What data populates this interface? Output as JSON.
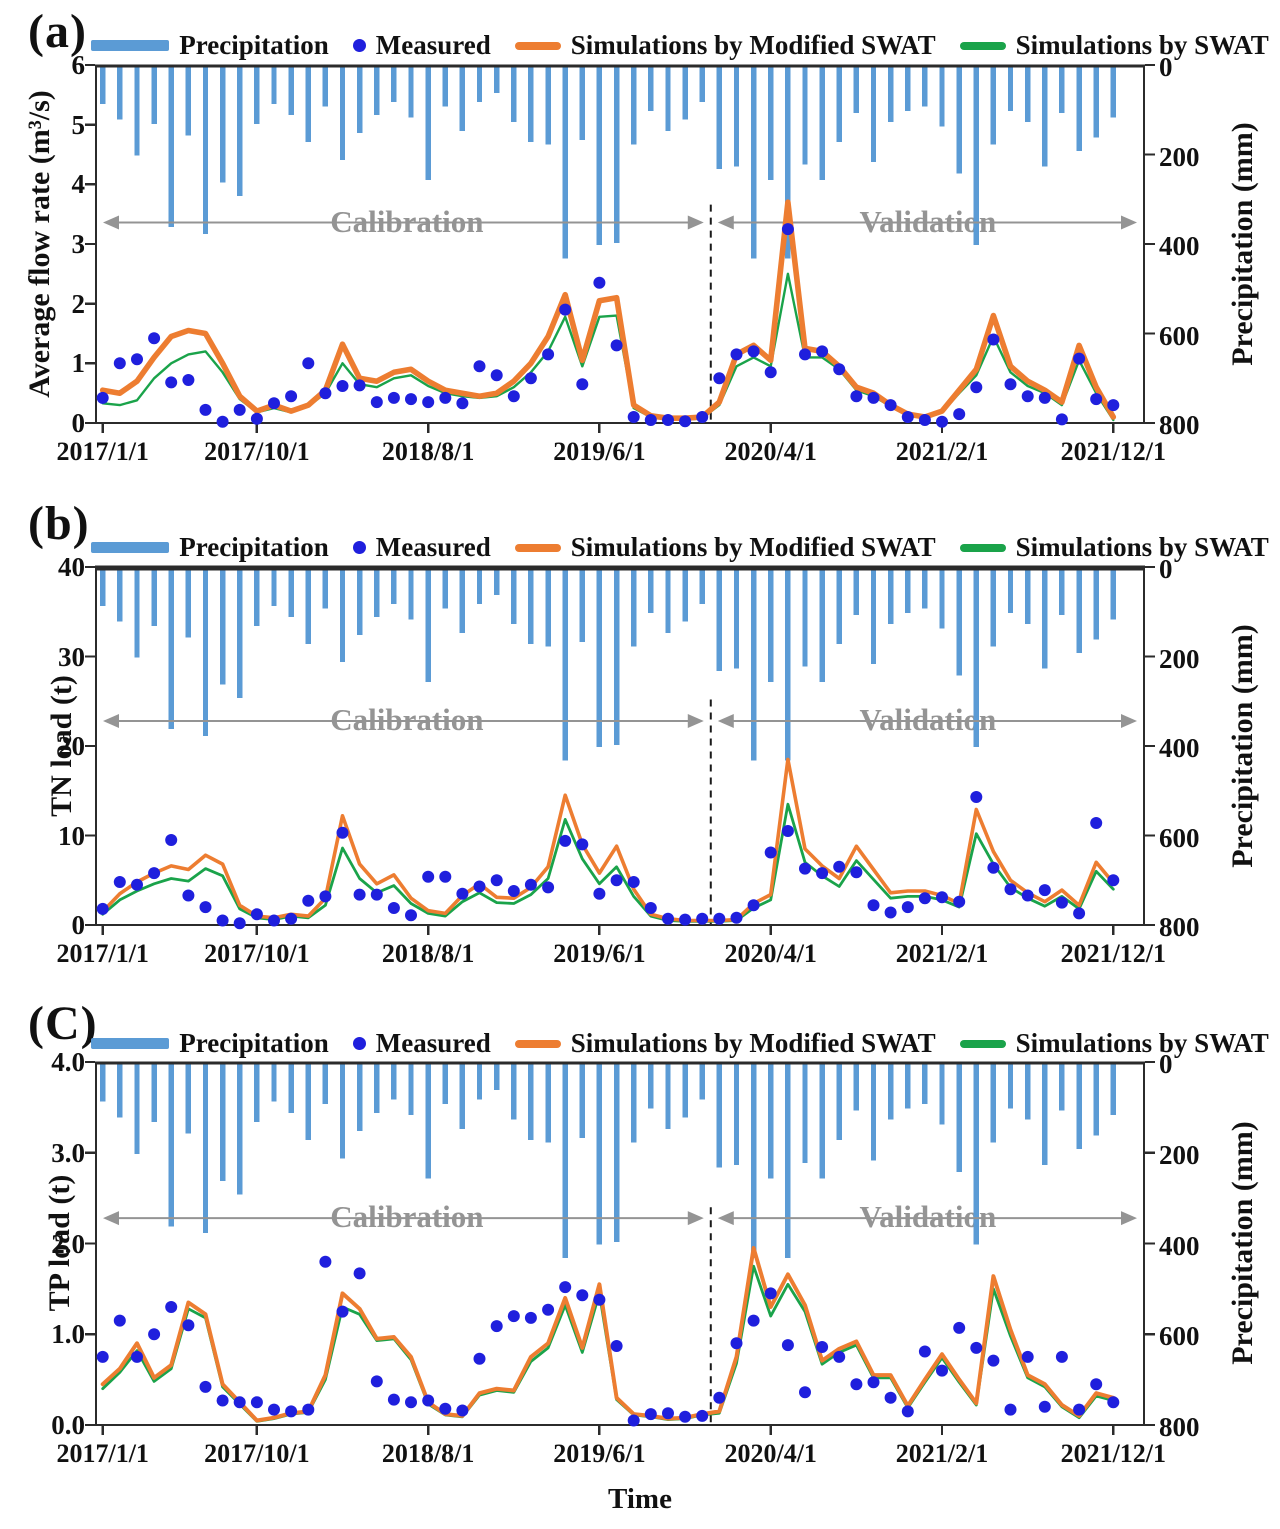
{
  "page": {
    "background": "#ffffff"
  },
  "colors": {
    "precipitation_bar": "#5B9BD5",
    "measured_dot": "#1F1FDD",
    "modified_swat_line": "#ED7D31",
    "swat_line": "#1AA34A",
    "region_gray": "#949494",
    "axis": "#2b2b2b",
    "text": "#111111"
  },
  "legend": {
    "precipitation": "Precipitation",
    "measured": "Measured",
    "modified": "Simulations by Modified SWAT",
    "swat": "Simulations by SWAT"
  },
  "regions": {
    "calibration": "Calibration",
    "validation": "Validation",
    "boundary_after_month_index": 35,
    "boundary_date": "2019/12"
  },
  "x_axis": {
    "title": "Time",
    "tick_labels": [
      "2017/1/1",
      "2017/10/1",
      "2018/8/1",
      "2019/6/1",
      "2020/4/1",
      "2021/2/1",
      "2021/12/1"
    ],
    "tick_months": [
      0,
      9,
      19,
      29,
      39,
      49,
      59
    ],
    "interval": "monthly",
    "start": "2017/1",
    "end": "2021/12",
    "n_points": 60
  },
  "right_axis": {
    "title": "Precipitation (mm)",
    "ticks": [
      0,
      200,
      400,
      600,
      800
    ],
    "max": 800,
    "inverted": true
  },
  "chart_data": [
    {
      "type": "bar+line+scatter",
      "panel": "(a)",
      "ylabel_left": "Average flow rate (m³/s)",
      "ylabel_right": "Precipitation (mm)",
      "ylim_left": [
        0,
        6
      ],
      "left_ticks": [
        6,
        5,
        4,
        3,
        2,
        1,
        0
      ],
      "left_tick_labels": [
        "6",
        "5",
        "4",
        "3",
        "2",
        "1",
        "0"
      ],
      "ylim_right_inverted": [
        0,
        800
      ],
      "x_tick_labels": [
        "2017/1/1",
        "2017/10/1",
        "2018/8/1",
        "2019/6/1",
        "2020/4/1",
        "2021/2/1",
        "2021/12/1"
      ],
      "annotations": [
        "Calibration",
        "Validation"
      ],
      "series": [
        {
          "name": "Precipitation",
          "type": "bar",
          "axis": "right",
          "values": [
            85,
            120,
            200,
            130,
            360,
            155,
            375,
            260,
            290,
            130,
            85,
            110,
            170,
            90,
            210,
            150,
            110,
            80,
            115,
            255,
            90,
            145,
            80,
            60,
            125,
            170,
            175,
            430,
            165,
            400,
            395,
            175,
            100,
            145,
            120,
            80,
            230,
            225,
            430,
            255,
            430,
            220,
            255,
            170,
            105,
            215,
            125,
            100,
            90,
            135,
            240,
            400,
            175,
            100,
            125,
            225,
            105,
            190,
            160,
            115
          ]
        },
        {
          "name": "Measured",
          "type": "scatter",
          "axis": "left",
          "values": [
            0.42,
            1.0,
            1.07,
            1.42,
            0.68,
            0.72,
            0.22,
            0.02,
            0.22,
            0.07,
            0.33,
            0.45,
            1.0,
            0.5,
            0.62,
            0.63,
            0.35,
            0.42,
            0.4,
            0.35,
            0.42,
            0.33,
            0.95,
            0.8,
            0.45,
            0.75,
            1.15,
            1.9,
            0.65,
            2.35,
            1.3,
            0.1,
            0.05,
            0.05,
            0.03,
            0.1,
            0.75,
            1.15,
            1.2,
            0.85,
            3.25,
            1.15,
            1.2,
            0.9,
            0.45,
            0.42,
            0.3,
            0.1,
            0.05,
            0.02,
            0.15,
            0.6,
            1.4,
            0.65,
            0.45,
            0.42,
            0.06,
            1.08,
            0.4,
            0.3
          ]
        },
        {
          "name": "Simulations by Modified SWAT",
          "type": "line",
          "axis": "left",
          "values": [
            0.55,
            0.5,
            0.7,
            1.1,
            1.45,
            1.55,
            1.5,
            1.0,
            0.45,
            0.2,
            0.3,
            0.2,
            0.3,
            0.55,
            1.32,
            0.75,
            0.7,
            0.85,
            0.9,
            0.7,
            0.55,
            0.5,
            0.45,
            0.5,
            0.7,
            1.0,
            1.45,
            2.15,
            1.05,
            2.05,
            2.1,
            0.3,
            0.12,
            0.08,
            0.08,
            0.1,
            0.35,
            1.15,
            1.3,
            1.05,
            3.7,
            1.25,
            1.2,
            0.95,
            0.6,
            0.5,
            0.3,
            0.15,
            0.1,
            0.2,
            0.55,
            0.9,
            1.8,
            0.95,
            0.7,
            0.55,
            0.35,
            1.3,
            0.6,
            0.1
          ]
        },
        {
          "name": "Simulations by SWAT",
          "type": "line",
          "axis": "left",
          "values": [
            0.33,
            0.3,
            0.38,
            0.75,
            1.0,
            1.15,
            1.2,
            0.85,
            0.4,
            0.18,
            0.25,
            0.18,
            0.28,
            0.5,
            1.0,
            0.65,
            0.6,
            0.75,
            0.8,
            0.62,
            0.5,
            0.45,
            0.42,
            0.45,
            0.6,
            0.85,
            1.2,
            1.78,
            0.95,
            1.78,
            1.8,
            0.25,
            0.1,
            0.06,
            0.05,
            0.08,
            0.3,
            0.95,
            1.1,
            0.95,
            2.5,
            1.1,
            1.1,
            0.9,
            0.55,
            0.45,
            0.28,
            0.13,
            0.08,
            0.18,
            0.5,
            0.8,
            1.45,
            0.85,
            0.62,
            0.5,
            0.3,
            1.05,
            0.5,
            0.05
          ]
        }
      ]
    },
    {
      "type": "bar+line+scatter",
      "panel": "(b)",
      "ylabel_left": "TN load (t)",
      "ylabel_right": "Precipitation (mm)",
      "ylim_left": [
        0,
        40
      ],
      "left_ticks": [
        40,
        30,
        20,
        10,
        0
      ],
      "left_tick_labels": [
        "40",
        "30",
        "20",
        "10",
        "0"
      ],
      "ylim_right_inverted": [
        0,
        800
      ],
      "x_tick_labels": [
        "2017/1/1",
        "2017/10/1",
        "2018/8/1",
        "2019/6/1",
        "2020/4/1",
        "2021/2/1",
        "2021/12/1"
      ],
      "annotations": [
        "Calibration",
        "Validation"
      ],
      "series": [
        {
          "name": "Precipitation",
          "type": "bar",
          "axis": "right",
          "values": [
            85,
            120,
            200,
            130,
            360,
            155,
            375,
            260,
            290,
            130,
            85,
            110,
            170,
            90,
            210,
            150,
            110,
            80,
            115,
            255,
            90,
            145,
            80,
            60,
            125,
            170,
            175,
            430,
            165,
            400,
            395,
            175,
            100,
            145,
            120,
            80,
            230,
            225,
            430,
            255,
            430,
            220,
            255,
            170,
            105,
            215,
            125,
            100,
            90,
            135,
            240,
            400,
            175,
            100,
            125,
            225,
            105,
            190,
            160,
            115
          ]
        },
        {
          "name": "Measured",
          "type": "scatter",
          "axis": "left",
          "values": [
            1.8,
            4.8,
            4.5,
            5.8,
            9.5,
            3.3,
            2.0,
            0.5,
            0.2,
            1.2,
            0.5,
            0.7,
            2.7,
            3.2,
            10.3,
            3.4,
            3.4,
            1.9,
            1.1,
            5.4,
            5.4,
            3.5,
            4.3,
            5.0,
            3.8,
            4.5,
            4.2,
            9.4,
            9.0,
            3.5,
            5.0,
            4.8,
            1.9,
            0.7,
            0.6,
            0.7,
            0.7,
            0.8,
            2.2,
            8.1,
            10.5,
            6.3,
            5.8,
            6.5,
            5.9,
            2.2,
            1.4,
            2.0,
            3.0,
            3.1,
            2.6,
            14.3,
            6.4,
            4.0,
            3.3,
            3.9,
            2.5,
            1.3,
            11.4,
            5.0
          ]
        },
        {
          "name": "Simulations by Modified SWAT",
          "type": "line",
          "axis": "left",
          "values": [
            1.5,
            3.5,
            4.8,
            5.8,
            6.6,
            6.2,
            7.8,
            6.8,
            2.2,
            1.0,
            0.8,
            1.2,
            1.0,
            3.0,
            12.2,
            6.8,
            4.6,
            5.6,
            3.0,
            1.6,
            1.3,
            3.3,
            4.6,
            3.1,
            3.0,
            4.2,
            6.5,
            14.5,
            9.0,
            5.8,
            8.8,
            4.0,
            1.2,
            0.7,
            0.5,
            0.5,
            0.5,
            0.6,
            2.4,
            3.4,
            18.5,
            8.5,
            6.6,
            5.2,
            8.8,
            6.2,
            3.6,
            3.8,
            3.8,
            3.3,
            2.4,
            12.9,
            8.2,
            5.0,
            3.6,
            2.6,
            3.9,
            2.2,
            7.0,
            4.7
          ]
        },
        {
          "name": "Simulations by SWAT",
          "type": "line",
          "axis": "left",
          "values": [
            1.2,
            2.8,
            3.8,
            4.6,
            5.2,
            4.9,
            6.3,
            5.5,
            1.8,
            0.8,
            0.6,
            1.0,
            0.8,
            2.2,
            8.6,
            5.2,
            3.6,
            4.4,
            2.4,
            1.3,
            1.0,
            2.6,
            3.6,
            2.5,
            2.4,
            3.4,
            5.2,
            11.8,
            7.4,
            4.6,
            6.5,
            3.2,
            1.0,
            0.5,
            0.4,
            0.4,
            0.4,
            0.5,
            1.9,
            2.8,
            13.5,
            7.0,
            5.5,
            4.3,
            7.2,
            5.1,
            3.0,
            3.2,
            3.2,
            2.8,
            2.0,
            10.2,
            6.8,
            4.2,
            3.0,
            2.1,
            3.2,
            1.8,
            6.0,
            4.0
          ]
        }
      ]
    },
    {
      "type": "bar+line+scatter",
      "panel": "(C)",
      "ylabel_left": "TP load (t)",
      "ylabel_right": "Precipitation (mm)",
      "xlabel": "Time",
      "ylim_left": [
        0,
        4
      ],
      "left_ticks": [
        4,
        3,
        2,
        1,
        0
      ],
      "left_tick_labels": [
        "4.0",
        "3.0",
        "2.0",
        "1.0",
        "0.0"
      ],
      "ylim_right_inverted": [
        0,
        800
      ],
      "x_tick_labels": [
        "2017/1/1",
        "2017/10/1",
        "2018/8/1",
        "2019/6/1",
        "2020/4/1",
        "2021/2/1",
        "2021/12/1"
      ],
      "annotations": [
        "Calibration",
        "Validation"
      ],
      "series": [
        {
          "name": "Precipitation",
          "type": "bar",
          "axis": "right",
          "values": [
            85,
            120,
            200,
            130,
            360,
            155,
            375,
            260,
            290,
            130,
            85,
            110,
            170,
            90,
            210,
            150,
            110,
            80,
            115,
            255,
            90,
            145,
            80,
            60,
            125,
            170,
            175,
            430,
            165,
            400,
            395,
            175,
            100,
            145,
            120,
            80,
            230,
            225,
            430,
            255,
            430,
            220,
            255,
            170,
            105,
            215,
            125,
            100,
            90,
            135,
            240,
            400,
            175,
            100,
            125,
            225,
            105,
            190,
            160,
            115
          ]
        },
        {
          "name": "Measured",
          "type": "scatter",
          "axis": "left",
          "values": [
            0.75,
            1.15,
            0.75,
            1.0,
            1.3,
            1.1,
            0.42,
            0.27,
            0.25,
            0.25,
            0.17,
            0.15,
            0.17,
            1.8,
            1.25,
            1.67,
            0.48,
            0.28,
            0.25,
            0.27,
            0.18,
            0.16,
            0.73,
            1.09,
            1.2,
            1.18,
            1.27,
            1.52,
            1.43,
            1.38,
            0.87,
            0.05,
            0.12,
            0.13,
            0.09,
            0.1,
            0.3,
            0.9,
            1.15,
            1.45,
            0.88,
            0.36,
            0.86,
            0.75,
            0.45,
            0.47,
            0.3,
            0.15,
            0.81,
            0.6,
            1.07,
            0.85,
            0.71,
            0.17,
            0.75,
            0.2,
            0.75,
            0.17,
            0.45,
            0.25
          ]
        },
        {
          "name": "Simulations by Modified SWAT",
          "type": "line",
          "axis": "left",
          "values": [
            0.45,
            0.62,
            0.9,
            0.52,
            0.66,
            1.35,
            1.22,
            0.45,
            0.25,
            0.05,
            0.08,
            0.13,
            0.15,
            0.55,
            1.45,
            1.28,
            0.95,
            0.97,
            0.75,
            0.25,
            0.12,
            0.1,
            0.35,
            0.4,
            0.38,
            0.75,
            0.9,
            1.4,
            0.85,
            1.55,
            0.3,
            0.12,
            0.1,
            0.07,
            0.08,
            0.12,
            0.15,
            0.75,
            1.95,
            1.3,
            1.66,
            1.32,
            0.71,
            0.84,
            0.92,
            0.55,
            0.55,
            0.21,
            0.5,
            0.78,
            0.5,
            0.24,
            1.64,
            1.05,
            0.55,
            0.45,
            0.22,
            0.1,
            0.35,
            0.3
          ]
        },
        {
          "name": "Simulations by SWAT",
          "type": "line",
          "axis": "left",
          "values": [
            0.4,
            0.58,
            0.82,
            0.48,
            0.62,
            1.28,
            1.18,
            0.42,
            0.23,
            0.04,
            0.07,
            0.12,
            0.14,
            0.5,
            1.3,
            1.22,
            0.93,
            0.95,
            0.72,
            0.23,
            0.11,
            0.09,
            0.33,
            0.38,
            0.36,
            0.7,
            0.85,
            1.32,
            0.8,
            1.45,
            0.28,
            0.11,
            0.09,
            0.06,
            0.07,
            0.11,
            0.13,
            0.68,
            1.75,
            1.2,
            1.55,
            1.25,
            0.67,
            0.8,
            0.88,
            0.52,
            0.52,
            0.19,
            0.47,
            0.74,
            0.47,
            0.22,
            1.5,
            0.98,
            0.52,
            0.42,
            0.2,
            0.08,
            0.32,
            0.27
          ]
        }
      ]
    }
  ]
}
